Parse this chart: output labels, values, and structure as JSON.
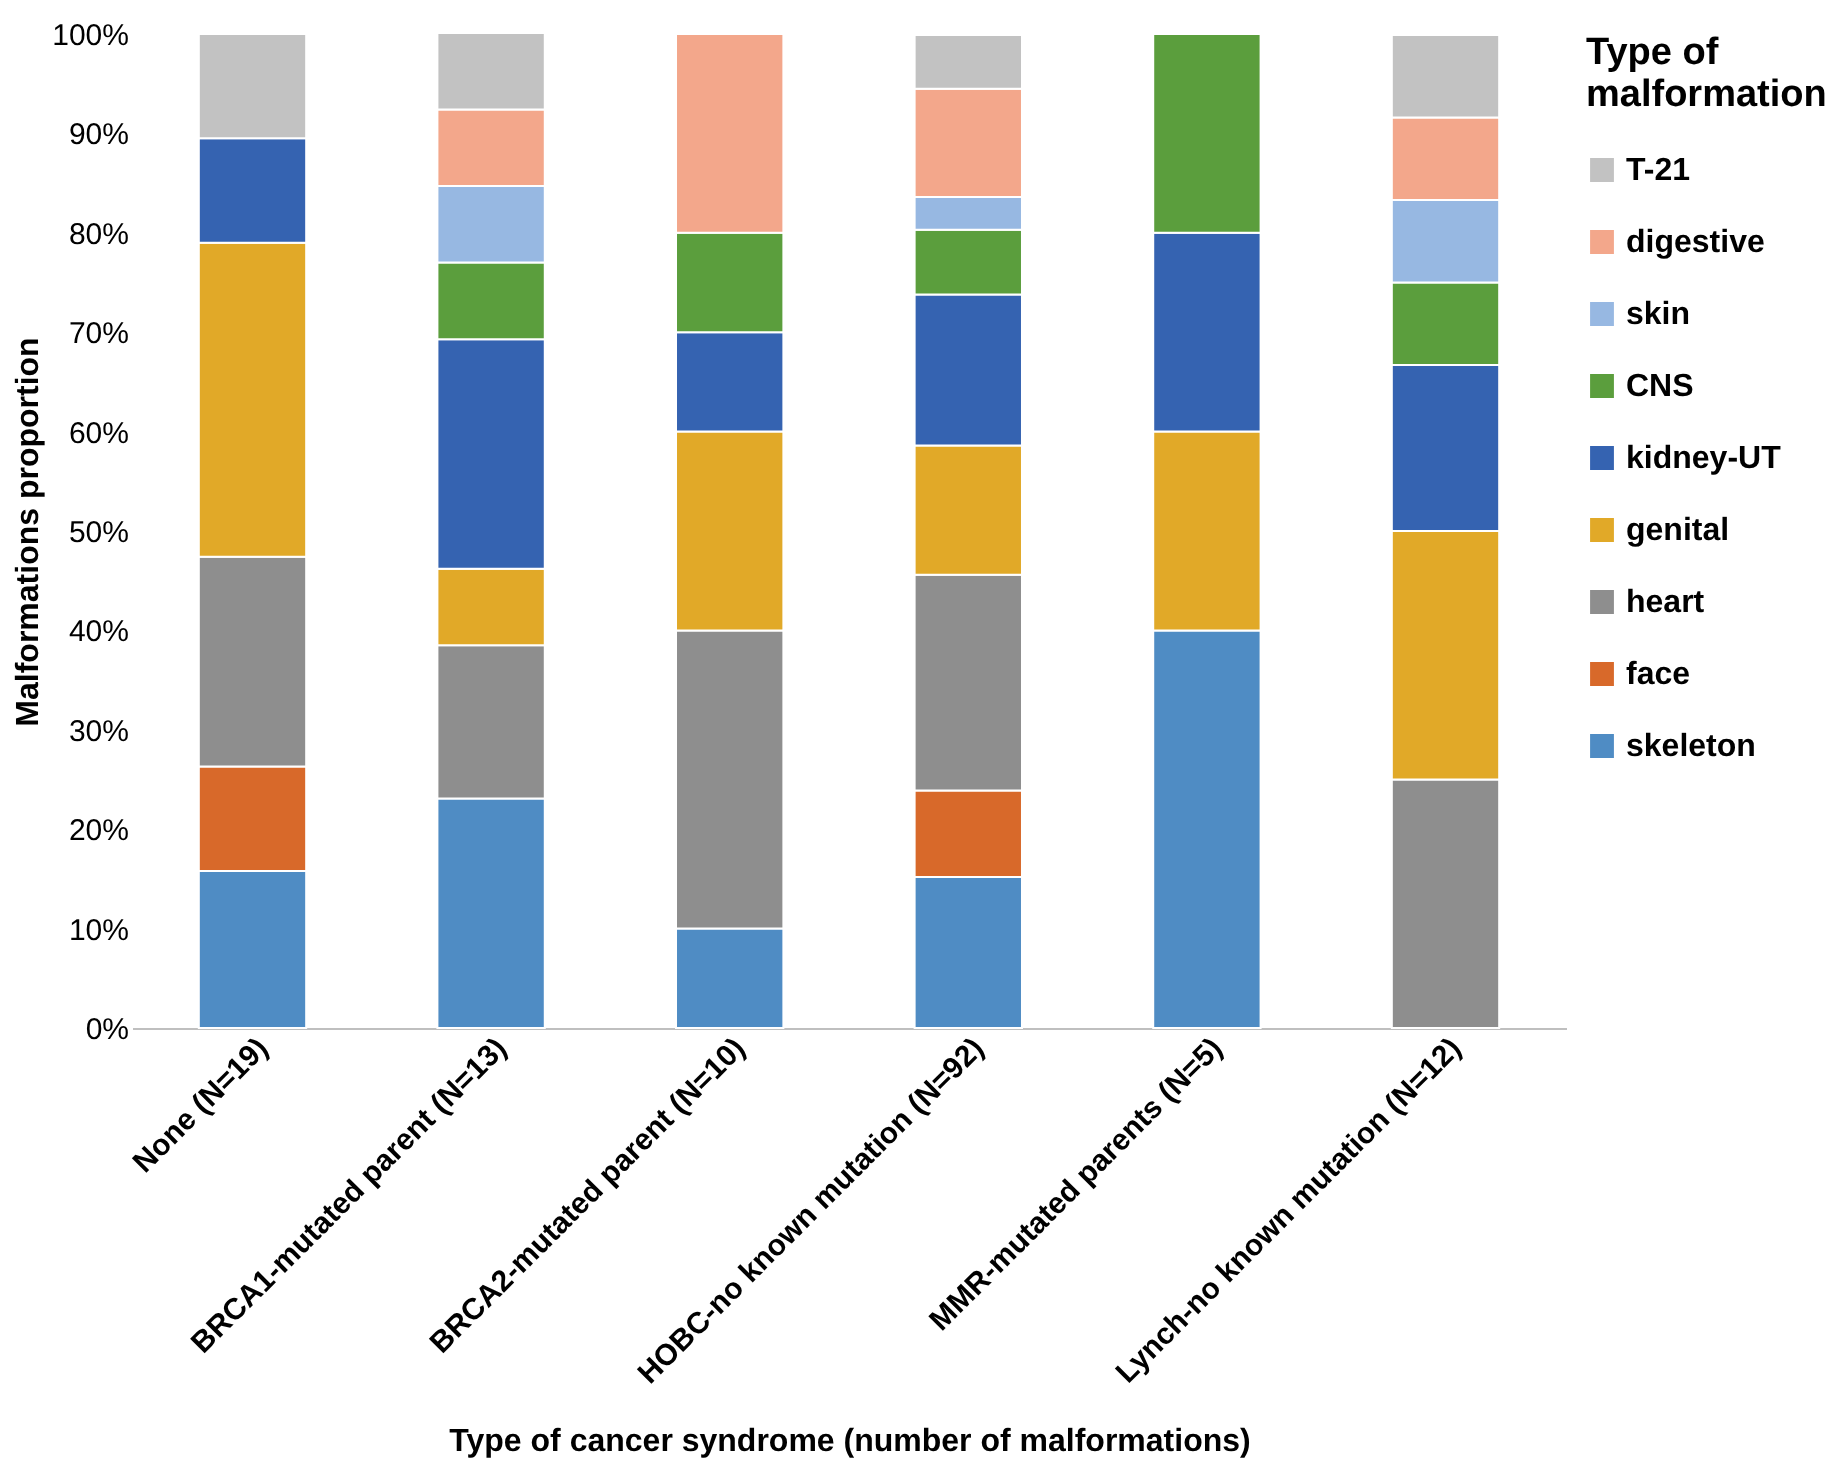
{
  "chart_data": {
    "type": "bar",
    "stacked": true,
    "xlabel": "Type of cancer syndrome (number of malformations)",
    "ylabel": "Malformations proportion",
    "legend_title": "Type of malformation",
    "legend": "right",
    "grid": false,
    "categories": [
      "None (N=19)",
      "BRCA1-mutated parent (N=13)",
      "BRCA2-mutated parent (N=10)",
      "HOBC-no known mutation (N=92)",
      "MMR-mutated parents (N=5)",
      "Lynch-no known mutation (N=12)"
    ],
    "ylim": [
      0,
      100
    ],
    "yticks": [
      {
        "value": 0,
        "label": "0%"
      },
      {
        "value": 10,
        "label": "10%"
      },
      {
        "value": 20,
        "label": "20%"
      },
      {
        "value": 30,
        "label": "30%"
      },
      {
        "value": 40,
        "label": "40%"
      },
      {
        "value": 50,
        "label": "50%"
      },
      {
        "value": 60,
        "label": "60%"
      },
      {
        "value": 70,
        "label": "70%"
      },
      {
        "value": 80,
        "label": "80%"
      },
      {
        "value": 90,
        "label": "90%"
      },
      {
        "value": 100,
        "label": "100%"
      }
    ],
    "series": [
      {
        "name": "skeleton",
        "color": "#4f8cc4",
        "values": [
          15.8,
          23.1,
          10.0,
          15.2,
          40.0,
          null
        ]
      },
      {
        "name": "face",
        "color": "#d8692a",
        "values": [
          10.5,
          null,
          null,
          8.7,
          null,
          null
        ]
      },
      {
        "name": "heart",
        "color": "#8e8e8e",
        "values": [
          21.1,
          15.4,
          30.0,
          21.7,
          null,
          25.0
        ]
      },
      {
        "name": "genital",
        "color": "#e1a928",
        "values": [
          31.6,
          7.7,
          20.0,
          13.0,
          20.0,
          25.0
        ]
      },
      {
        "name": "kidney-UT",
        "color": "#3563b1",
        "values": [
          10.5,
          23.1,
          10.0,
          15.2,
          20.0,
          16.7
        ]
      },
      {
        "name": "CNS",
        "color": "#5b9e3d",
        "values": [
          null,
          7.7,
          10.0,
          6.5,
          20.0,
          8.3
        ]
      },
      {
        "name": "skin",
        "color": "#97b8e2",
        "values": [
          null,
          7.7,
          null,
          3.3,
          null,
          8.3
        ]
      },
      {
        "name": "digestive",
        "color": "#f3a78b",
        "values": [
          null,
          7.7,
          20.0,
          10.9,
          null,
          8.3
        ]
      },
      {
        "name": "T-21",
        "color": "#c2c2c2",
        "values": [
          10.5,
          7.7,
          null,
          5.4,
          null,
          8.3
        ]
      }
    ]
  }
}
